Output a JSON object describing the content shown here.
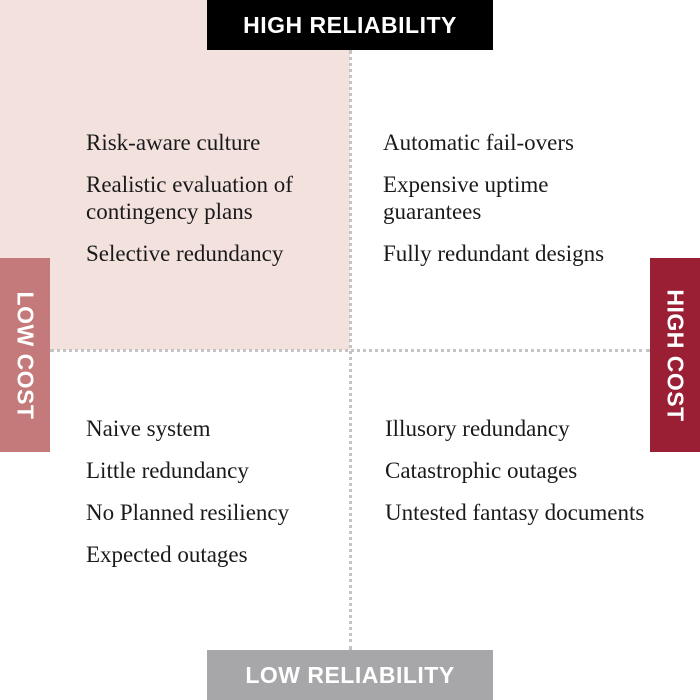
{
  "axes": {
    "top": "HIGH RELIABILITY",
    "bottom": "LOW RELIABILITY",
    "left": "LOW COST",
    "right": "HIGH COST"
  },
  "quadrants": {
    "top_left": {
      "items": [
        "Risk-aware culture",
        "Realistic evaluation of contingency plans",
        "Selective redundancy"
      ]
    },
    "top_right": {
      "items": [
        "Automatic fail-overs",
        "Expensive uptime guarantees",
        "Fully redundant designs"
      ]
    },
    "bottom_left": {
      "items": [
        "Naive system",
        "Little redundancy",
        "No Planned resiliency",
        "Expected outages"
      ]
    },
    "bottom_right": {
      "items": [
        "Illusory redundancy",
        "Catastrophic outages",
        "Untested fantasy documents"
      ]
    }
  },
  "colors": {
    "highlight_quadrant": "#f2e1dc",
    "high_reliability": "#000000",
    "low_reliability": "#a7a7a9",
    "low_cost": "#c4797a",
    "high_cost": "#9a1f34",
    "divider": "#c4c4c4"
  }
}
